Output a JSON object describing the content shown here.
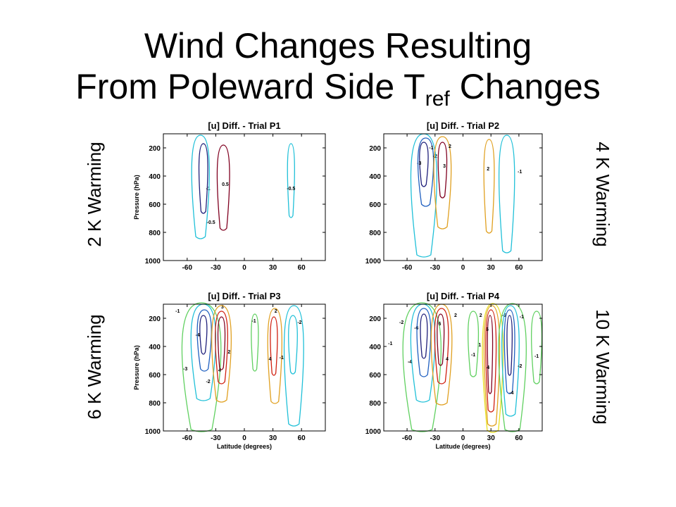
{
  "slide": {
    "title_line1": "Wind Changes Resulting",
    "title_line2_prefix": "From Poleward Side T",
    "title_line2_sub": "ref",
    "title_line2_suffix": " Changes"
  },
  "side_labels": {
    "top_left": "2 K Warming",
    "top_right": "4 K Warming",
    "bottom_left": "6 K Warming",
    "bottom_right": "10 K Warming"
  },
  "colors": {
    "dark_blue": "#1f1f7a",
    "blue": "#2060c0",
    "cyan": "#20c0d8",
    "green": "#60d060",
    "yellow": "#e8e020",
    "orange": "#e0a020",
    "red": "#d02010",
    "dark_red": "#800020"
  },
  "chart_data": [
    {
      "type": "contour",
      "title": "[u] Diff. - Trial P1",
      "xlabel": "",
      "ylabel": "Pressure (hPa)",
      "x_ticks": [
        -60,
        -30,
        0,
        30,
        60
      ],
      "y_ticks": [
        200,
        400,
        600,
        800,
        1000
      ],
      "xlim": [
        -85,
        85
      ],
      "ylim": [
        1000,
        100
      ],
      "contours": [
        {
          "color": "dark_blue",
          "lat": -43,
          "half_width": 5,
          "p_top": 170,
          "p_bottom": 650,
          "label": "-1",
          "label_lat": -38,
          "label_p": 500
        },
        {
          "color": "cyan",
          "lat": -46,
          "half_width": 10,
          "p_top": 110,
          "p_bottom": 830,
          "label": "-0.5",
          "label_lat": -35,
          "label_p": 740
        },
        {
          "color": "dark_red",
          "lat": -22,
          "half_width": 7,
          "p_top": 180,
          "p_bottom": 770,
          "label": "0.5",
          "label_lat": -20,
          "label_p": 470
        },
        {
          "color": "cyan",
          "lat": 49,
          "half_width": 4,
          "p_top": 170,
          "p_bottom": 680,
          "label": "-0.5",
          "label_lat": 49,
          "label_p": 500
        }
      ]
    },
    {
      "type": "contour",
      "title": "[u] Diff. - Trial P2",
      "xlabel": "",
      "ylabel": "",
      "x_ticks": [
        -60,
        -30,
        0,
        30,
        60
      ],
      "y_ticks": [
        200,
        400,
        600,
        800,
        1000
      ],
      "xlim": [
        -85,
        85
      ],
      "ylim": [
        1000,
        100
      ],
      "contours": [
        {
          "color": "dark_blue",
          "lat": -42,
          "half_width": 5,
          "p_top": 160,
          "p_bottom": 460,
          "label": "-3",
          "label_lat": -47,
          "label_p": 320
        },
        {
          "color": "blue",
          "lat": -40,
          "half_width": 9,
          "p_top": 130,
          "p_bottom": 600,
          "label": "-2",
          "label_lat": -30,
          "label_p": 270
        },
        {
          "color": "cyan",
          "lat": -42,
          "half_width": 15,
          "p_top": 100,
          "p_bottom": 960,
          "label": "-1",
          "label_lat": -34,
          "label_p": 210
        },
        {
          "color": "dark_red",
          "lat": -22,
          "half_width": 5,
          "p_top": 160,
          "p_bottom": 540,
          "label": "3",
          "label_lat": -20,
          "label_p": 340
        },
        {
          "color": "orange",
          "lat": -22,
          "half_width": 10,
          "p_top": 120,
          "p_bottom": 760,
          "label": "2",
          "label_lat": -14,
          "label_p": 200
        },
        {
          "color": "orange",
          "lat": 28,
          "half_width": 6,
          "p_top": 140,
          "p_bottom": 790,
          "label": "2",
          "label_lat": 27,
          "label_p": 360
        },
        {
          "color": "cyan",
          "lat": 47,
          "half_width": 9,
          "p_top": 110,
          "p_bottom": 930,
          "label": "-1",
          "label_lat": 61,
          "label_p": 380
        }
      ]
    },
    {
      "type": "contour",
      "title": "[u] Diff. - Trial P3",
      "xlabel": "Latitude (degrees)",
      "ylabel": "Pressure (hPa)",
      "x_ticks": [
        -60,
        -30,
        0,
        30,
        60
      ],
      "y_ticks": [
        200,
        400,
        600,
        800,
        1000
      ],
      "xlim": [
        -85,
        85
      ],
      "ylim": [
        1000,
        100
      ],
      "contours": [
        {
          "color": "dark_blue",
          "lat": -43,
          "half_width": 4,
          "p_top": 180,
          "p_bottom": 440,
          "label": "-4",
          "label_lat": -49,
          "label_p": 330
        },
        {
          "color": "blue",
          "lat": -42,
          "half_width": 8,
          "p_top": 140,
          "p_bottom": 560,
          "label": "-3",
          "label_lat": -62,
          "label_p": 570
        },
        {
          "color": "cyan",
          "lat": -43,
          "half_width": 14,
          "p_top": 100,
          "p_bottom": 770,
          "label": "-2",
          "label_lat": -38,
          "label_p": 660
        },
        {
          "color": "green",
          "lat": -45,
          "half_width": 22,
          "p_top": 90,
          "p_bottom": 990,
          "label": "-1",
          "label_lat": -70,
          "label_p": 160
        },
        {
          "color": "dark_red",
          "lat": -24,
          "half_width": 4,
          "p_top": 190,
          "p_bottom": 550,
          "label": "4",
          "label_lat": -26,
          "label_p": 580
        },
        {
          "color": "red",
          "lat": -24,
          "half_width": 7,
          "p_top": 150,
          "p_bottom": 650,
          "label": "3",
          "label_lat": -23,
          "label_p": 130
        },
        {
          "color": "orange",
          "lat": -24,
          "half_width": 11,
          "p_top": 110,
          "p_bottom": 780,
          "label": "2",
          "label_lat": -16,
          "label_p": 450
        },
        {
          "color": "red",
          "lat": 31,
          "half_width": 4,
          "p_top": 190,
          "p_bottom": 590,
          "label": "4",
          "label_lat": 27,
          "label_p": 500
        },
        {
          "color": "orange",
          "lat": 32,
          "half_width": 8,
          "p_top": 130,
          "p_bottom": 790,
          "label": "2",
          "label_lat": 33,
          "label_p": 160
        },
        {
          "color": "cyan",
          "lat": 51,
          "half_width": 5,
          "p_top": 180,
          "p_bottom": 580,
          "label": "-2",
          "label_lat": 58,
          "label_p": 240
        },
        {
          "color": "cyan",
          "lat": 52,
          "half_width": 11,
          "p_top": 110,
          "p_bottom": 950,
          "label": "-1",
          "label_lat": 39,
          "label_p": 490
        },
        {
          "color": "green",
          "lat": 11,
          "half_width": 4,
          "p_top": 170,
          "p_bottom": 560,
          "label": "-1",
          "label_lat": 10,
          "label_p": 230
        }
      ]
    },
    {
      "type": "contour",
      "title": "[u] Diff. - Trial P4",
      "xlabel": "Latitude (degrees)",
      "ylabel": "",
      "x_ticks": [
        -60,
        -30,
        0,
        30,
        60
      ],
      "y_ticks": [
        200,
        400,
        600,
        800,
        1000
      ],
      "xlim": [
        -85,
        85
      ],
      "ylim": [
        1000,
        100
      ],
      "contours": [
        {
          "color": "dark_blue",
          "lat": -42,
          "half_width": 4,
          "p_top": 170,
          "p_bottom": 470,
          "label": "-6",
          "label_lat": -50,
          "label_p": 280
        },
        {
          "color": "blue",
          "lat": -42,
          "half_width": 8,
          "p_top": 130,
          "p_bottom": 600,
          "label": "-4",
          "label_lat": -57,
          "label_p": 520
        },
        {
          "color": "cyan",
          "lat": -43,
          "half_width": 14,
          "p_top": 100,
          "p_bottom": 780,
          "label": "-2",
          "label_lat": -66,
          "label_p": 240
        },
        {
          "color": "green",
          "lat": -44,
          "half_width": 22,
          "p_top": 90,
          "p_bottom": 990,
          "label": "-1",
          "label_lat": -78,
          "label_p": 390
        },
        {
          "color": "dark_red",
          "lat": -24,
          "half_width": 4,
          "p_top": 170,
          "p_bottom": 520,
          "label": "6",
          "label_lat": -25,
          "label_p": 250
        },
        {
          "color": "red",
          "lat": -23,
          "half_width": 8,
          "p_top": 130,
          "p_bottom": 650,
          "label": "4",
          "label_lat": -17,
          "label_p": 500
        },
        {
          "color": "orange",
          "lat": -23,
          "half_width": 12,
          "p_top": 100,
          "p_bottom": 800,
          "label": "2",
          "label_lat": -8,
          "label_p": 190
        },
        {
          "color": "dark_red",
          "lat": 29,
          "half_width": 3,
          "p_top": 180,
          "p_bottom": 720,
          "label": "6",
          "label_lat": 26,
          "label_p": 290
        },
        {
          "color": "red",
          "lat": 30,
          "half_width": 6,
          "p_top": 140,
          "p_bottom": 850,
          "label": "4",
          "label_lat": 27,
          "label_p": 560
        },
        {
          "color": "orange",
          "lat": 31,
          "half_width": 9,
          "p_top": 110,
          "p_bottom": 950,
          "label": "2",
          "label_lat": 19,
          "label_p": 190
        },
        {
          "color": "yellow",
          "lat": 32,
          "half_width": 12,
          "p_top": 95,
          "p_bottom": 995,
          "label": "1",
          "label_lat": 18,
          "label_p": 400
        },
        {
          "color": "dark_blue",
          "lat": 50,
          "half_width": 3,
          "p_top": 180,
          "p_bottom": 590,
          "label": "-6",
          "label_lat": 44,
          "label_p": 190
        },
        {
          "color": "blue",
          "lat": 50,
          "half_width": 6,
          "p_top": 140,
          "p_bottom": 720,
          "label": "-4",
          "label_lat": 52,
          "label_p": 740
        },
        {
          "color": "cyan",
          "lat": 51,
          "half_width": 10,
          "p_top": 110,
          "p_bottom": 880,
          "label": "-2",
          "label_lat": 61,
          "label_p": 550
        },
        {
          "color": "green",
          "lat": 53,
          "half_width": 16,
          "p_top": 95,
          "p_bottom": 990,
          "label": "-1",
          "label_lat": 63,
          "label_p": 200
        },
        {
          "color": "green",
          "lat": 79,
          "half_width": 6,
          "p_top": 150,
          "p_bottom": 650,
          "label": "-1",
          "label_lat": 79,
          "label_p": 480
        },
        {
          "color": "green",
          "lat": 11,
          "half_width": 6,
          "p_top": 150,
          "p_bottom": 600,
          "label": "-1",
          "label_lat": 11,
          "label_p": 470
        }
      ]
    }
  ]
}
